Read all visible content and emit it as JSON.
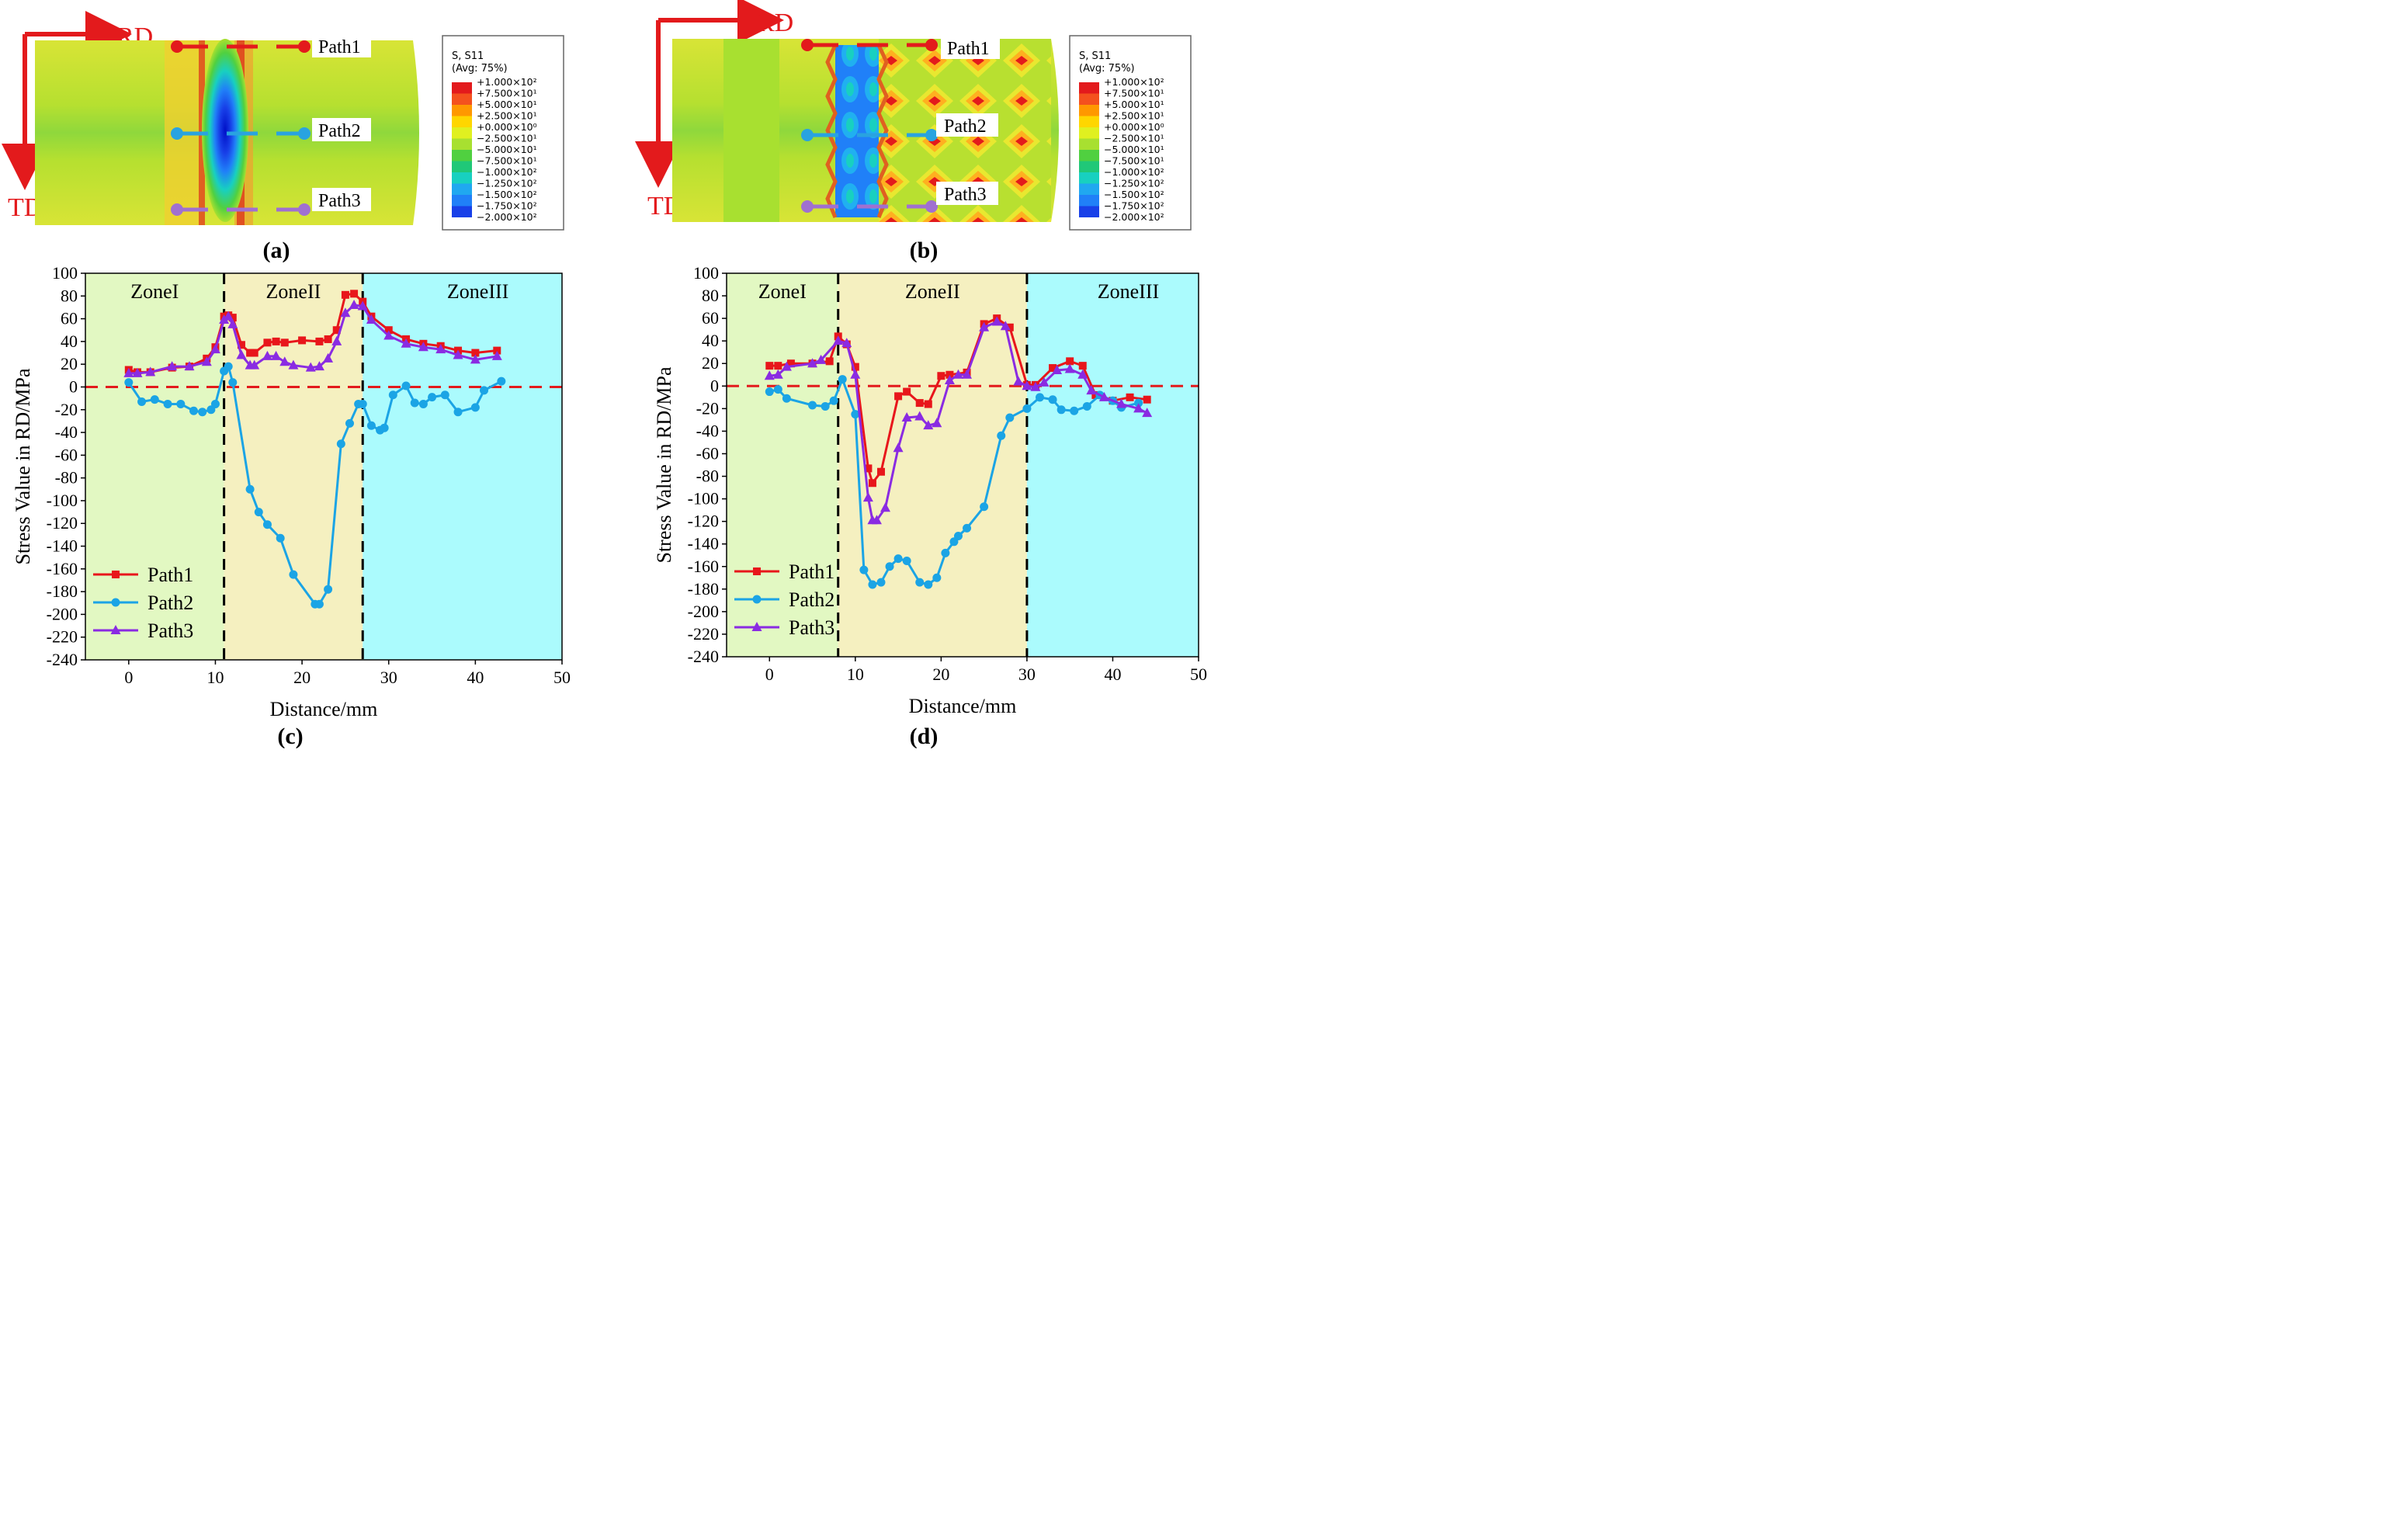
{
  "panels": {
    "a": {
      "label": "(a)",
      "axes": {
        "rd": "RD",
        "td": "TD"
      },
      "paths": [
        "Path1",
        "Path2",
        "Path3"
      ],
      "legend": {
        "title": "S, S11",
        "subtitle": "(Avg: 75%)",
        "entries": [
          "+1.000×10²",
          "+7.500×10¹",
          "+5.000×10¹",
          "+2.500×10¹",
          "+0.000×10⁰",
          "−2.500×10¹",
          "−5.000×10¹",
          "−7.500×10¹",
          "−1.000×10²",
          "−1.250×10²",
          "−1.500×10²",
          "−1.750×10²",
          "−2.000×10²"
        ],
        "colors": [
          "#e31a1c",
          "#f4511e",
          "#ff9800",
          "#ffd600",
          "#e0f020",
          "#a8e030",
          "#50d040",
          "#20c878",
          "#18d0c0",
          "#20a8f0",
          "#2080f8",
          "#1840e8",
          "#0010c8"
        ]
      }
    },
    "b": {
      "label": "(b)",
      "axes": {
        "rd": "RD",
        "td": "TD"
      },
      "paths": [
        "Path1",
        "Path2",
        "Path3"
      ],
      "legend": {
        "title": "S, S11",
        "subtitle": "(Avg: 75%)",
        "entries": [
          "+1.000×10²",
          "+7.500×10¹",
          "+5.000×10¹",
          "+2.500×10¹",
          "+0.000×10⁰",
          "−2.500×10¹",
          "−5.000×10¹",
          "−7.500×10¹",
          "−1.000×10²",
          "−1.250×10²",
          "−1.500×10²",
          "−1.750×10²",
          "−2.000×10²"
        ],
        "colors": [
          "#e31a1c",
          "#f4511e",
          "#ff9800",
          "#ffd600",
          "#e0f020",
          "#a8e030",
          "#50d040",
          "#20c878",
          "#18d0c0",
          "#20a8f0",
          "#2080f8",
          "#1840e8",
          "#0010c8"
        ]
      }
    }
  },
  "chart_data": [
    {
      "id": "c",
      "label": "(c)",
      "type": "line",
      "xlabel": "Distance/mm",
      "ylabel": "Stress Value in RD/MPa",
      "xlim": [
        -5,
        50
      ],
      "ylim": [
        -240,
        100
      ],
      "xticks": [
        0,
        10,
        20,
        30,
        40,
        50
      ],
      "yticks": [
        100,
        80,
        60,
        40,
        20,
        0,
        -20,
        -40,
        -60,
        -80,
        -100,
        -120,
        -140,
        -160,
        -180,
        -200,
        -220,
        -240
      ],
      "zones": [
        {
          "name": "ZoneI",
          "from": -5,
          "to": 11,
          "color": "#e2f8c2"
        },
        {
          "name": "ZoneII",
          "from": 11,
          "to": 27,
          "color": "#f5f0c0"
        },
        {
          "name": "ZoneIII",
          "from": 27,
          "to": 50,
          "color": "#abfbfd"
        }
      ],
      "zero_line": 0,
      "series": [
        {
          "name": "Path1",
          "color": "#e8161b",
          "marker": "square",
          "x": [
            0,
            1,
            2.5,
            5,
            7,
            9,
            10,
            11,
            11.5,
            12,
            13,
            14,
            14.5,
            16,
            17,
            18,
            20,
            22,
            23,
            24,
            25,
            26,
            27,
            28,
            30,
            32,
            34,
            36,
            38,
            40,
            42.5
          ],
          "y": [
            15,
            13,
            13,
            17,
            18,
            25,
            35,
            62,
            63,
            61,
            37,
            30,
            30,
            39,
            40,
            39,
            41,
            40,
            42,
            50,
            81,
            82,
            75,
            62,
            50,
            42,
            38,
            36,
            32,
            30,
            32
          ]
        },
        {
          "name": "Path2",
          "color": "#1ba4e5",
          "marker": "circle",
          "x": [
            0,
            1.5,
            3,
            4.5,
            6,
            7.5,
            8.5,
            9.5,
            10,
            11,
            11.5,
            12,
            14,
            15,
            16,
            17.5,
            19,
            21.5,
            22,
            23,
            24.5,
            25.5,
            26.5,
            27,
            28,
            29,
            29.5,
            30.5,
            32,
            33,
            34,
            35,
            36.5,
            38,
            40,
            41,
            43
          ],
          "y": [
            4,
            -13,
            -11,
            -15,
            -15,
            -21,
            -22,
            -20,
            -15,
            14,
            18,
            4,
            -90,
            -110,
            -121,
            -133,
            -165,
            -191,
            -191,
            -178,
            -50,
            -32,
            -15,
            -15,
            -34,
            -38,
            -36,
            -7,
            1,
            -14,
            -15,
            -9,
            -7,
            -22,
            -18,
            -3,
            5
          ]
        },
        {
          "name": "Path3",
          "color": "#8a2be2",
          "marker": "triangle",
          "x": [
            0,
            1,
            2.5,
            5,
            7,
            9,
            10,
            11,
            11.5,
            12,
            13,
            14,
            14.5,
            16,
            17,
            18,
            19,
            21,
            22,
            23,
            24,
            25,
            26,
            27,
            28,
            30,
            32,
            34,
            36,
            38,
            40,
            42.5
          ],
          "y": [
            12,
            12,
            13,
            18,
            18,
            22,
            33,
            59,
            62,
            55,
            28,
            19,
            19,
            27,
            27,
            22,
            19,
            17,
            18,
            25,
            40,
            65,
            72,
            71,
            59,
            45,
            38,
            35,
            33,
            28,
            24,
            27
          ]
        }
      ]
    },
    {
      "id": "d",
      "label": "(d)",
      "type": "line",
      "xlabel": "Distance/mm",
      "ylabel": "Stress Value in RD/MPa",
      "xlim": [
        -5,
        50
      ],
      "ylim": [
        -240,
        100
      ],
      "xticks": [
        0,
        10,
        20,
        30,
        40,
        50
      ],
      "yticks": [
        100,
        80,
        60,
        40,
        20,
        0,
        -20,
        -40,
        -60,
        -80,
        -100,
        -120,
        -140,
        -160,
        -180,
        -200,
        -220,
        -240
      ],
      "zones": [
        {
          "name": "ZoneI",
          "from": -5,
          "to": 8,
          "color": "#e2f8c2"
        },
        {
          "name": "ZoneII",
          "from": 8,
          "to": 30,
          "color": "#f5f0c0"
        },
        {
          "name": "ZoneIII",
          "from": 30,
          "to": 50,
          "color": "#abfbfd"
        }
      ],
      "zero_line": 0,
      "series": [
        {
          "name": "Path1",
          "color": "#e8161b",
          "marker": "square",
          "x": [
            0,
            1,
            2.5,
            5,
            7,
            8,
            9,
            10,
            11.5,
            12,
            13,
            15,
            16,
            17.5,
            18.5,
            20,
            21,
            23,
            25,
            26.5,
            28,
            30,
            31,
            33,
            35,
            36.5,
            38,
            40,
            42,
            44
          ],
          "y": [
            18,
            18,
            20,
            20,
            22,
            44,
            37,
            17,
            -73,
            -86,
            -76,
            -9,
            -5,
            -15,
            -16,
            9,
            10,
            12,
            55,
            60,
            52,
            1,
            1,
            16,
            22,
            18,
            -8,
            -13,
            -10,
            -12
          ]
        },
        {
          "name": "Path2",
          "color": "#1ba4e5",
          "marker": "circle",
          "x": [
            0,
            1,
            2,
            5,
            6.5,
            7.5,
            8.5,
            10,
            11,
            12,
            13,
            14,
            15,
            16,
            17.5,
            18.5,
            19.5,
            20.5,
            21.5,
            22,
            23,
            25,
            27,
            28,
            30,
            31.5,
            33,
            34,
            35.5,
            37,
            38.5,
            40,
            41,
            43
          ],
          "y": [
            -5,
            -3,
            -11,
            -17,
            -18,
            -13,
            6,
            -25,
            -163,
            -176,
            -174,
            -160,
            -153,
            -155,
            -174,
            -176,
            -170,
            -148,
            -138,
            -133,
            -126,
            -107,
            -44,
            -28,
            -20,
            -10,
            -12,
            -21,
            -22,
            -18,
            -8,
            -13,
            -19,
            -15
          ]
        },
        {
          "name": "Path3",
          "color": "#8a2be2",
          "marker": "triangle",
          "x": [
            0,
            1,
            2,
            5,
            6,
            8,
            9,
            10,
            11.5,
            12,
            12.5,
            13.5,
            15,
            16,
            17.5,
            18.5,
            19.5,
            21,
            22,
            23,
            25,
            26.5,
            27.5,
            29,
            30,
            31,
            32,
            33.5,
            35,
            36.5,
            37.5,
            39,
            41,
            43,
            44
          ],
          "y": [
            9,
            10,
            17,
            20,
            23,
            40,
            38,
            10,
            -99,
            -119,
            -119,
            -108,
            -55,
            -28,
            -27,
            -35,
            -33,
            5,
            10,
            10,
            52,
            57,
            53,
            4,
            0,
            -1,
            3,
            14,
            15,
            10,
            -4,
            -10,
            -16,
            -20,
            -24
          ]
        }
      ]
    }
  ]
}
